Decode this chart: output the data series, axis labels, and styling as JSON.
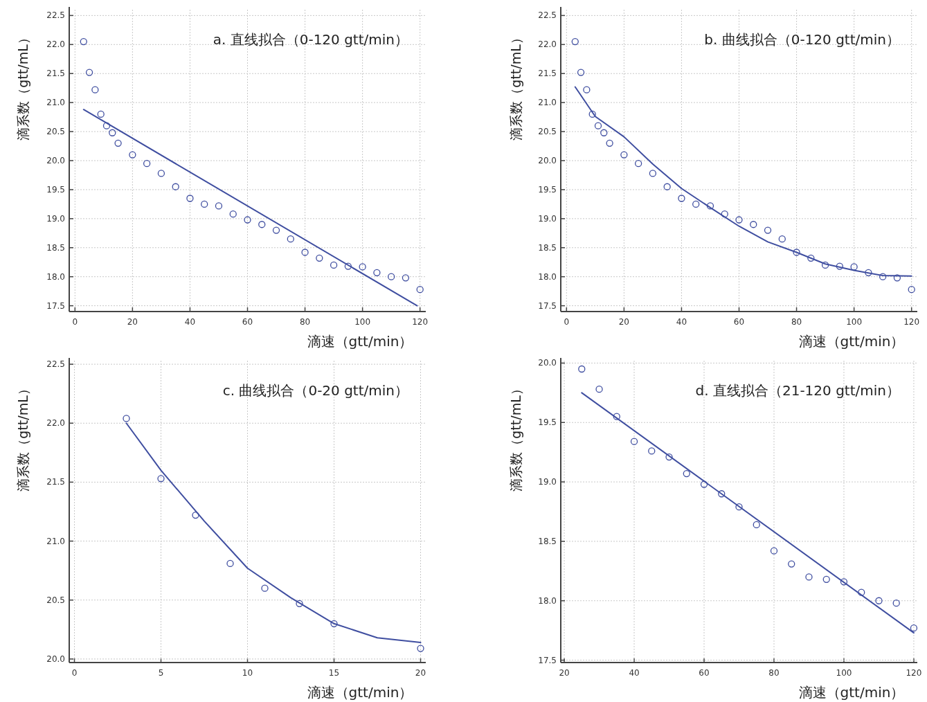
{
  "chart_data": [
    {
      "type": "scatter",
      "title": "a. 直线拟合（0-120 gtt/min）",
      "xlabel": "滴速（gtt/min）",
      "ylabel": "滴系数（gtt/mL）",
      "grid": true,
      "xlim": [
        -2,
        122
      ],
      "ylim": [
        17.4,
        22.6
      ],
      "xticks": [
        0,
        20,
        40,
        60,
        80,
        100,
        120
      ],
      "yticks": [
        {
          "value": 17.5,
          "label": "17.5"
        },
        {
          "value": 18,
          "label": "18.0"
        },
        {
          "value": 18.5,
          "label": "18.5"
        },
        {
          "value": 19,
          "label": "19.0"
        },
        {
          "value": 19.5,
          "label": "19.5"
        },
        {
          "value": 20,
          "label": "20.0"
        },
        {
          "value": 20.5,
          "label": "20.5"
        },
        {
          "value": 21,
          "label": "21.0"
        },
        {
          "value": 21.5,
          "label": "21.5"
        },
        {
          "value": 22,
          "label": "22.0"
        },
        {
          "value": 22.5,
          "label": "22.5"
        }
      ],
      "series": [
        {
          "type": "scatter",
          "marker": "circle",
          "color": "#3f4ea0",
          "x": [
            3,
            5,
            7,
            9,
            11,
            13,
            15,
            20,
            25,
            30,
            35,
            40,
            45,
            50,
            55,
            60,
            65,
            70,
            75,
            80,
            85,
            90,
            95,
            100,
            105,
            110,
            115,
            120
          ],
          "values": [
            22.05,
            21.52,
            21.22,
            20.8,
            20.6,
            20.48,
            20.3,
            20.1,
            19.95,
            19.78,
            19.55,
            19.35,
            19.25,
            19.22,
            19.08,
            18.98,
            18.9,
            18.8,
            18.65,
            18.42,
            18.32,
            18.2,
            18.18,
            18.17,
            18.07,
            18.0,
            17.98,
            17.78
          ]
        },
        {
          "type": "line",
          "marker": "none",
          "color": "#3f4ea0",
          "x": [
            3,
            119
          ],
          "values": [
            20.88,
            17.5
          ]
        }
      ]
    },
    {
      "type": "scatter",
      "title": "b. 曲线拟合（0-120 gtt/min）",
      "xlabel": "滴速（gtt/min）",
      "ylabel": "滴系数（gtt/mL）",
      "grid": true,
      "xlim": [
        -2,
        122
      ],
      "ylim": [
        17.4,
        22.6
      ],
      "xticks": [
        0,
        20,
        40,
        60,
        80,
        100,
        120
      ],
      "yticks": [
        {
          "value": 17.5,
          "label": "17.5"
        },
        {
          "value": 18,
          "label": "18.0"
        },
        {
          "value": 18.5,
          "label": "18.5"
        },
        {
          "value": 19,
          "label": "19.0"
        },
        {
          "value": 19.5,
          "label": "19.5"
        },
        {
          "value": 20,
          "label": "20.0"
        },
        {
          "value": 20.5,
          "label": "20.5"
        },
        {
          "value": 21,
          "label": "21.0"
        },
        {
          "value": 21.5,
          "label": "21.5"
        },
        {
          "value": 22,
          "label": "22.0"
        },
        {
          "value": 22.5,
          "label": "22.5"
        }
      ],
      "series": [
        {
          "type": "scatter",
          "marker": "circle",
          "color": "#3f4ea0",
          "x": [
            3,
            5,
            7,
            9,
            11,
            13,
            15,
            20,
            25,
            30,
            35,
            40,
            45,
            50,
            55,
            60,
            65,
            70,
            75,
            80,
            85,
            90,
            95,
            100,
            105,
            110,
            115,
            120
          ],
          "values": [
            22.05,
            21.52,
            21.22,
            20.8,
            20.6,
            20.48,
            20.3,
            20.1,
            19.95,
            19.78,
            19.55,
            19.35,
            19.25,
            19.22,
            19.08,
            18.98,
            18.9,
            18.8,
            18.65,
            18.42,
            18.32,
            18.2,
            18.18,
            18.17,
            18.07,
            18.0,
            17.98,
            17.78
          ]
        },
        {
          "type": "line",
          "marker": "none",
          "color": "#3f4ea0",
          "x": [
            3,
            10,
            20,
            30,
            40,
            50,
            60,
            70,
            80,
            90,
            100,
            110,
            120
          ],
          "values": [
            21.27,
            20.76,
            20.41,
            19.94,
            19.52,
            19.19,
            18.87,
            18.6,
            18.42,
            18.22,
            18.11,
            18.02,
            18.01
          ]
        }
      ]
    },
    {
      "type": "scatter",
      "title": "c. 曲线拟合（0-20 gtt/min）",
      "xlabel": "滴速（gtt/min）",
      "ylabel": "滴系数（gtt/mL）",
      "grid": true,
      "xlim": [
        -0.3,
        20.3
      ],
      "ylim": [
        19.97,
        22.53
      ],
      "xticks": [
        0,
        5,
        10,
        15,
        20
      ],
      "yticks": [
        {
          "value": 20,
          "label": "20.0"
        },
        {
          "value": 20.5,
          "label": "20.5"
        },
        {
          "value": 21,
          "label": "21.0"
        },
        {
          "value": 21.5,
          "label": "21.5"
        },
        {
          "value": 22,
          "label": "22.0"
        },
        {
          "value": 22.5,
          "label": "22.5"
        }
      ],
      "series": [
        {
          "type": "scatter",
          "marker": "circle",
          "color": "#3f4ea0",
          "x": [
            3,
            5,
            7,
            9,
            11,
            13,
            15,
            20
          ],
          "values": [
            22.04,
            21.53,
            21.22,
            20.81,
            20.6,
            20.47,
            20.3,
            20.09
          ]
        },
        {
          "type": "line",
          "marker": "none",
          "color": "#3f4ea0",
          "x": [
            3,
            5,
            7.5,
            10,
            12.5,
            15,
            17.5,
            20
          ],
          "values": [
            22.0,
            21.6,
            21.17,
            20.77,
            20.52,
            20.3,
            20.18,
            20.14
          ]
        }
      ]
    },
    {
      "type": "scatter",
      "title": "d. 直线拟合（21-120 gtt/min）",
      "xlabel": "滴速（gtt/min）",
      "ylabel": "滴系数（gtt/mL）",
      "grid": true,
      "xlim": [
        19,
        121
      ],
      "ylim": [
        17.48,
        20.02
      ],
      "xticks": [
        20,
        40,
        60,
        80,
        100,
        120
      ],
      "yticks": [
        {
          "value": 17.5,
          "label": "17.5"
        },
        {
          "value": 18,
          "label": "18.0"
        },
        {
          "value": 18.5,
          "label": "18.5"
        },
        {
          "value": 19,
          "label": "19.0"
        },
        {
          "value": 19.5,
          "label": "19.5"
        },
        {
          "value": 20,
          "label": "20.0"
        }
      ],
      "series": [
        {
          "type": "scatter",
          "marker": "circle",
          "color": "#3f4ea0",
          "x": [
            25,
            30,
            35,
            40,
            45,
            50,
            55,
            60,
            65,
            70,
            75,
            80,
            85,
            90,
            95,
            100,
            105,
            110,
            115,
            120
          ],
          "values": [
            19.95,
            19.78,
            19.55,
            19.34,
            19.26,
            19.21,
            19.07,
            18.98,
            18.9,
            18.79,
            18.64,
            18.42,
            18.31,
            18.2,
            18.18,
            18.16,
            18.07,
            18.0,
            17.98,
            17.77
          ]
        },
        {
          "type": "line",
          "marker": "none",
          "color": "#3f4ea0",
          "x": [
            25,
            120
          ],
          "values": [
            19.75,
            17.73
          ]
        }
      ]
    }
  ]
}
